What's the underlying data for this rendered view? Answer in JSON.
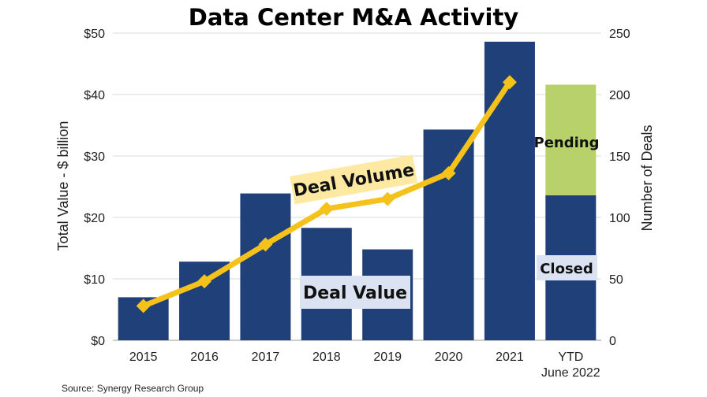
{
  "chart_data": {
    "type": "bar",
    "title": "Data Center M&A Activity",
    "categories": [
      "2015",
      "2016",
      "2017",
      "2018",
      "2019",
      "2020",
      "2021",
      "YTD|June 2022"
    ],
    "y_left": {
      "label": "Total Value - $ billion",
      "range": [
        0,
        50
      ],
      "ticks": [
        0,
        10,
        20,
        30,
        40,
        50
      ],
      "tick_labels": [
        "$0",
        "$10",
        "$20",
        "$30",
        "$40",
        "$50"
      ]
    },
    "y_right": {
      "label": "Number of Deals",
      "range": [
        0,
        250
      ],
      "ticks": [
        0,
        50,
        100,
        150,
        200,
        250
      ],
      "tick_labels": [
        "0",
        "50",
        "100",
        "150",
        "200",
        "250"
      ]
    },
    "bars_closed": [
      7,
      12.8,
      23.9,
      18.3,
      14.8,
      34.3,
      48.6,
      23.6
    ],
    "bars_pending": [
      0,
      0,
      0,
      0,
      0,
      0,
      0,
      18
    ],
    "line_deals": [
      28,
      48,
      78,
      107,
      115,
      136,
      210,
      null
    ],
    "colors": {
      "closed": "#20407a",
      "pending": "#b9d16b",
      "line": "#f4c21a"
    },
    "annotations": {
      "deal_volume": "Deal Volume",
      "deal_value": "Deal Value",
      "pending": "Pending",
      "closed": "Closed"
    },
    "grid": true,
    "source": "Source: Synergy Research Group"
  }
}
